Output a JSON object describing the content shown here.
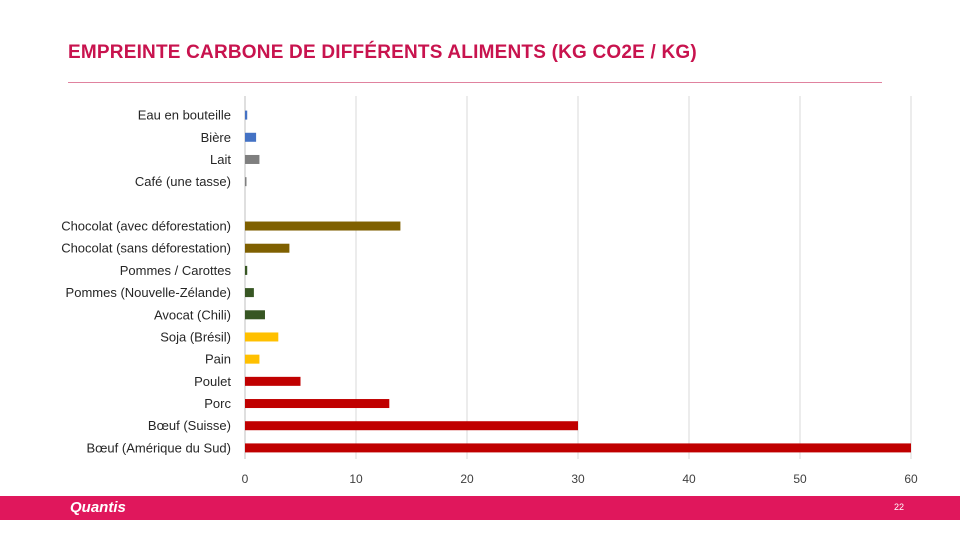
{
  "slide": {
    "title": "EMPREINTE CARBONE DE DIFFÉRENTS ALIMENTS (KG CO2E / KG)",
    "logo_text": "Quantis",
    "page_number": "22"
  },
  "colors": {
    "accent": "#c8134e",
    "footer": "#e0175c"
  },
  "chart_data": {
    "type": "bar",
    "orientation": "horizontal",
    "title": "EMPREINTE CARBONE DE DIFFÉRENTS ALIMENTS (KG CO2E / KG)",
    "xlim": [
      0,
      60
    ],
    "xticks": [
      0,
      10,
      20,
      30,
      40,
      50,
      60
    ],
    "grid": true,
    "categories": [
      "Eau en bouteille",
      "Bière",
      "Lait",
      "Café (une tasse)",
      "",
      "Chocolat (avec déforestation)",
      "Chocolat (sans déforestation)",
      "Pommes / Carottes",
      "Pommes (Nouvelle-Zélande)",
      "Avocat (Chili)",
      "Soja (Brésil)",
      "Pain",
      "Poulet",
      "Porc",
      "Bœuf (Suisse)",
      "Bœuf (Amérique du Sud)"
    ],
    "values": [
      0.2,
      1.0,
      1.3,
      0.1,
      null,
      14.0,
      4.0,
      0.2,
      0.8,
      1.8,
      3.0,
      1.3,
      5.0,
      13.0,
      30.0,
      60.0
    ],
    "bar_colors": [
      "#4472c4",
      "#4472c4",
      "#7f7f7f",
      "#7f7f7f",
      null,
      "#7f6000",
      "#7f6000",
      "#375623",
      "#375623",
      "#375623",
      "#ffc000",
      "#ffc000",
      "#c00000",
      "#c00000",
      "#c00000",
      "#c00000"
    ]
  }
}
